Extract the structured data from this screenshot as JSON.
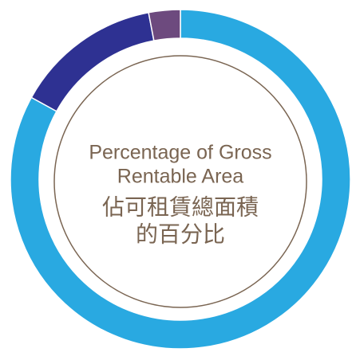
{
  "chart_data": {
    "type": "donut",
    "title": [
      "Percentage of Gross",
      "Rentable Area",
      "佔可租賃總面積",
      "的百分比"
    ],
    "values": [
      83,
      14,
      3
    ],
    "colors": [
      "#29a9e1",
      "#2e3192",
      "#6d4a7e"
    ]
  }
}
